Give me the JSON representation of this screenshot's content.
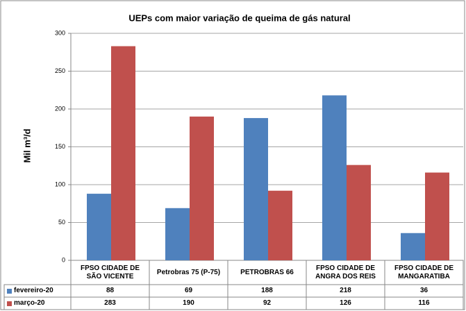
{
  "chart_data": {
    "type": "bar",
    "title": "UEPs com maior variação de queima de gás natural",
    "y_label": "Mil m³/d",
    "categories": [
      "FPSO CIDADE DE SÃO VICENTE",
      "Petrobras 75 (P-75)",
      "PETROBRAS 66",
      "FPSO CIDADE DE ANGRA DOS REIS",
      "FPSO CIDADE DE MANGARATIBA"
    ],
    "series": [
      {
        "name": "fevereiro-20",
        "color": "#4f81bd",
        "values": [
          88,
          69,
          188,
          218,
          36
        ]
      },
      {
        "name": "março-20",
        "color": "#c0504d",
        "values": [
          283,
          190,
          92,
          126,
          116
        ]
      }
    ],
    "ylim": [
      0,
      300
    ],
    "yticks": [
      0,
      50,
      100,
      150,
      200,
      250,
      300
    ],
    "grid": true
  }
}
